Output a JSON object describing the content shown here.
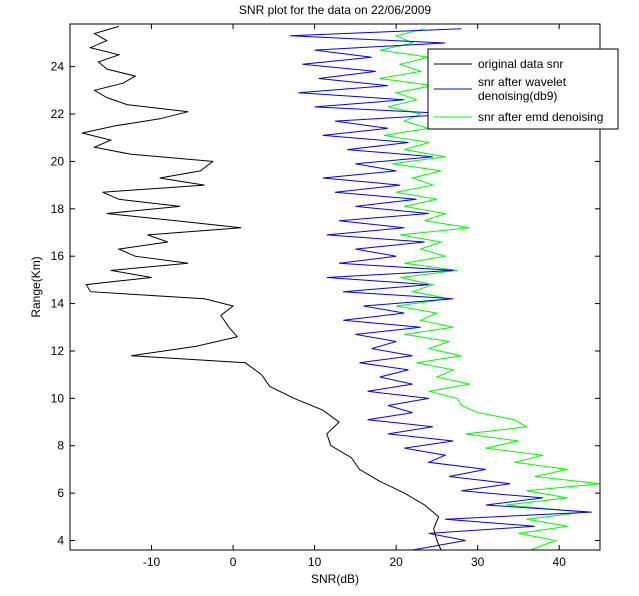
{
  "chart_data": {
    "type": "line",
    "title": "SNR plot for the data on 22/06/2009",
    "xlabel": "SNR(dB)",
    "ylabel": "Range(Km)",
    "xlim": [
      -20,
      45
    ],
    "ylim": [
      3.6,
      25.8
    ],
    "xticks": [
      -10,
      0,
      10,
      20,
      30,
      40
    ],
    "yticks": [
      4,
      6,
      8,
      10,
      12,
      14,
      16,
      18,
      20,
      22,
      24
    ],
    "grid": false,
    "legend_position": "top-right",
    "series": [
      {
        "name": "original data snr",
        "color": "#000000",
        "range_km": [
          3.6,
          4.0,
          4.5,
          5.0,
          5.5,
          6.0,
          6.5,
          7.0,
          7.5,
          8.0,
          8.5,
          9.0,
          9.5,
          10.0,
          10.5,
          11.0,
          11.5,
          11.8,
          12.2,
          12.6,
          13.0,
          13.5,
          13.9,
          14.2,
          14.5,
          14.8,
          15.1,
          15.4,
          15.7,
          16.0,
          16.3,
          16.6,
          16.9,
          17.2,
          17.5,
          17.8,
          18.1,
          18.4,
          18.7,
          19.0,
          19.3,
          19.6,
          20.0,
          20.3,
          20.6,
          20.9,
          21.2,
          21.5,
          21.8,
          22.1,
          22.4,
          22.7,
          23.0,
          23.3,
          23.6,
          23.9,
          24.2,
          24.5,
          24.8,
          25.1,
          25.4,
          25.7
        ],
        "snr_db": [
          25.5,
          25.0,
          24.6,
          25.2,
          23.5,
          21.0,
          18.0,
          15.5,
          14.5,
          12.0,
          11.5,
          13.0,
          11.0,
          7.5,
          4.5,
          3.5,
          1.5,
          -12.5,
          -4.5,
          0.5,
          -0.5,
          -1.5,
          0.0,
          -3.5,
          -17.5,
          -18.0,
          -10.0,
          -15.0,
          -5.5,
          -12.0,
          -14.0,
          -8.0,
          -10.5,
          1.0,
          -7.0,
          -15.5,
          -6.5,
          -14.0,
          -16.0,
          -3.5,
          -9.0,
          -4.0,
          -2.5,
          -12.5,
          -17.0,
          -15.0,
          -18.5,
          -14.5,
          -9.0,
          -5.5,
          -13.0,
          -15.5,
          -17.0,
          -13.5,
          -12.0,
          -15.5,
          -16.5,
          -14.0,
          -17.5,
          -15.5,
          -17.0,
          -14.0
        ]
      },
      {
        "name": "snr after wavelet denoising(db9)",
        "color": "#0000ff",
        "range_km": [
          3.6,
          4.0,
          4.3,
          4.6,
          4.9,
          5.2,
          5.5,
          5.8,
          6.1,
          6.4,
          6.7,
          7.0,
          7.3,
          7.6,
          7.9,
          8.2,
          8.5,
          8.8,
          9.1,
          9.4,
          9.7,
          10.0,
          10.3,
          10.6,
          10.9,
          11.2,
          11.5,
          11.8,
          12.1,
          12.4,
          12.7,
          13.0,
          13.3,
          13.6,
          13.9,
          14.2,
          14.5,
          14.8,
          15.1,
          15.4,
          15.7,
          16.0,
          16.3,
          16.6,
          16.9,
          17.2,
          17.5,
          17.8,
          18.1,
          18.4,
          18.7,
          19.0,
          19.3,
          19.6,
          19.9,
          20.2,
          20.5,
          20.8,
          21.1,
          21.4,
          21.7,
          22.0,
          22.3,
          22.6,
          22.9,
          23.2,
          23.5,
          23.8,
          24.1,
          24.4,
          24.7,
          25.0,
          25.3,
          25.6
        ],
        "snr_db": [
          22.0,
          28.5,
          24.0,
          37.0,
          26.0,
          44.0,
          31.0,
          38.0,
          28.0,
          34.0,
          26.5,
          31.0,
          24.0,
          26.0,
          21.0,
          27.0,
          19.0,
          24.5,
          16.5,
          22.0,
          19.0,
          24.0,
          16.5,
          22.0,
          18.0,
          21.5,
          15.5,
          22.0,
          17.0,
          20.0,
          15.0,
          23.0,
          13.5,
          21.0,
          16.0,
          27.0,
          13.5,
          24.0,
          11.5,
          27.0,
          13.0,
          20.0,
          15.0,
          23.5,
          11.5,
          21.0,
          13.0,
          24.0,
          15.0,
          22.5,
          12.5,
          20.5,
          11.0,
          20.0,
          15.0,
          24.5,
          14.0,
          21.5,
          11.0,
          19.0,
          12.5,
          27.5,
          10.0,
          21.0,
          8.0,
          19.0,
          10.5,
          17.5,
          8.5,
          17.0,
          10.0,
          26.0,
          7.0,
          28.0
        ]
      },
      {
        "name": "snr after emd denoising",
        "color": "#00ff00",
        "range_km": [
          3.6,
          4.0,
          4.3,
          4.6,
          4.9,
          5.2,
          5.5,
          5.8,
          6.1,
          6.4,
          6.7,
          7.0,
          7.3,
          7.6,
          7.9,
          8.2,
          8.5,
          8.8,
          9.1,
          9.4,
          9.7,
          10.0,
          10.3,
          10.6,
          10.9,
          11.2,
          11.5,
          11.8,
          12.1,
          12.4,
          12.7,
          13.0,
          13.3,
          13.6,
          13.9,
          14.2,
          14.5,
          14.8,
          15.1,
          15.4,
          15.7,
          16.0,
          16.3,
          16.6,
          16.9,
          17.2,
          17.5,
          17.8,
          18.1,
          18.4,
          18.7,
          19.0,
          19.3,
          19.6,
          19.9,
          20.2,
          20.5,
          20.8,
          21.1,
          21.4,
          21.7,
          22.0,
          22.3,
          22.6,
          22.9,
          23.2,
          23.5,
          23.8,
          24.1,
          24.4,
          24.7,
          25.0,
          25.3,
          25.6
        ],
        "snr_db": [
          36.5,
          39.5,
          35.0,
          41.0,
          36.0,
          43.0,
          33.5,
          41.0,
          36.0,
          45.0,
          37.0,
          41.0,
          34.5,
          38.0,
          31.0,
          35.0,
          28.5,
          36.0,
          34.5,
          30.0,
          28.0,
          27.5,
          24.0,
          29.0,
          25.0,
          27.0,
          22.5,
          28.0,
          24.0,
          26.5,
          21.0,
          27.0,
          23.0,
          25.0,
          20.0,
          26.5,
          22.0,
          24.5,
          20.5,
          27.5,
          21.0,
          26.0,
          23.0,
          25.5,
          20.5,
          29.0,
          23.5,
          26.0,
          21.0,
          25.0,
          20.0,
          24.5,
          22.0,
          25.5,
          19.5,
          26.0,
          21.0,
          24.0,
          18.5,
          24.0,
          21.0,
          23.0,
          19.0,
          22.5,
          20.0,
          24.5,
          18.0,
          23.0,
          20.5,
          24.0,
          18.0,
          22.0,
          20.0,
          23.5
        ]
      }
    ]
  }
}
